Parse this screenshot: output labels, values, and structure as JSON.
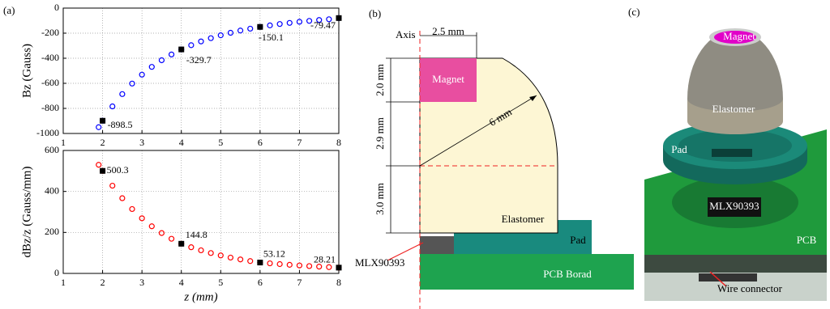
{
  "chart_data": [
    {
      "type": "scatter",
      "ylabel": "Bz (Gauss)",
      "x": [
        1.9,
        2,
        2.25,
        2.5,
        2.75,
        3,
        3.25,
        3.5,
        3.75,
        4,
        4.25,
        4.5,
        4.75,
        5,
        5.25,
        5.5,
        5.75,
        6,
        6.25,
        6.5,
        6.75,
        7,
        7.25,
        7.5,
        7.75,
        8
      ],
      "series": [
        {
          "color": "#0000ff",
          "values": [
            -950,
            -898.5,
            -784,
            -686,
            -602,
            -531,
            -469,
            -416,
            -370,
            -329.7,
            -296,
            -266,
            -240,
            -217,
            -197,
            -179,
            -164,
            -150.1,
            -138,
            -127,
            -118,
            -109,
            -102,
            -95,
            -89,
            -79.47
          ]
        }
      ],
      "points": {
        "x": [
          2,
          4,
          6,
          8
        ],
        "values": [
          -898.5,
          -329.7,
          -150.1,
          -79.47
        ]
      },
      "xlim": [
        1,
        8
      ],
      "xticks": [
        1,
        2,
        3,
        4,
        5,
        6,
        7,
        8
      ],
      "ylim": [
        -1000,
        0
      ],
      "yticks": [
        -1000,
        -800,
        -600,
        -400,
        -200,
        0
      ],
      "grid": true
    },
    {
      "type": "scatter",
      "ylabel": "dBz/z (Gauss/mm)",
      "xlabel": "z (mm)",
      "x": [
        1.9,
        2,
        2.25,
        2.5,
        2.75,
        3,
        3.25,
        3.5,
        3.75,
        4,
        4.25,
        4.5,
        4.75,
        5,
        5.25,
        5.5,
        5.75,
        6,
        6.25,
        6.5,
        6.75,
        7,
        7.25,
        7.5,
        7.75,
        8
      ],
      "series": [
        {
          "color": "#ff0000",
          "values": [
            530,
            500.3,
            428,
            367,
            314,
            269,
            230,
            197,
            169,
            144.8,
            127.7,
            112.7,
            99.4,
            87.7,
            77.3,
            68.2,
            60.2,
            53.12,
            49.1,
            45.4,
            41.9,
            38.7,
            35.8,
            33.1,
            30.6,
            28.21
          ]
        }
      ],
      "points": {
        "x": [
          2,
          4,
          6,
          8
        ],
        "values": [
          500.3,
          144.8,
          53.12,
          28.21
        ]
      },
      "xlim": [
        1,
        8
      ],
      "xticks": [
        1,
        2,
        3,
        4,
        5,
        6,
        7,
        8
      ],
      "ylim": [
        0,
        600
      ],
      "yticks": [
        0,
        200,
        400,
        600
      ],
      "grid": true
    }
  ],
  "panels": {
    "a": "(a)",
    "b": "(b)",
    "c": "(c)"
  },
  "diagram_b": {
    "axis": "Axis",
    "width": "2.5 mm",
    "magnet": "Magnet",
    "dims": [
      "2.0 mm",
      "2.9 mm",
      "3.0 mm"
    ],
    "radius": "6 mm",
    "elastomer": "Elastomer",
    "pad": "Pad",
    "sensor": "MLX90393",
    "pcb": "PCB Borad"
  },
  "render_c": {
    "magnet": "Magnet",
    "elastomer": "Elastomer",
    "pad": "Pad",
    "sensor": "MLX90393",
    "pcb": "PCB",
    "wire": "Wire connector"
  }
}
